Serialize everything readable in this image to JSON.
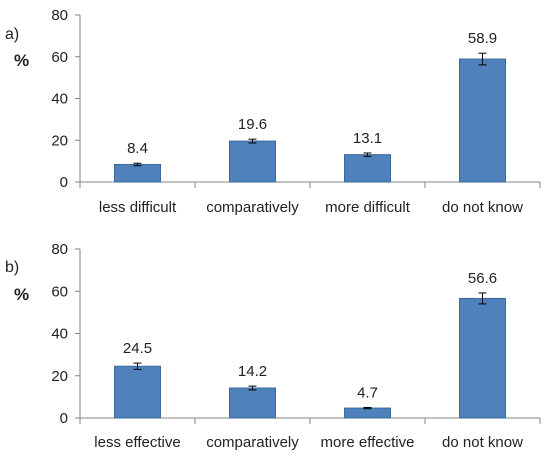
{
  "colors": {
    "bar": "#4F81BD",
    "bar_edge": "#3A6A9E",
    "axis": "#868686",
    "error_bar": "#000000"
  },
  "chart_data": [
    {
      "type": "bar",
      "panel_label": "a)",
      "ylabel": "%",
      "ylim": [
        0,
        80
      ],
      "yticks": [
        0,
        20,
        40,
        60,
        80
      ],
      "categories": [
        "less difficult",
        "comparatively",
        "more difficult",
        "do not know"
      ],
      "values": [
        8.4,
        19.6,
        13.1,
        58.9
      ],
      "data_labels": [
        "8.4",
        "19.6",
        "13.1",
        "58.9"
      ],
      "error": [
        0.6,
        0.9,
        0.8,
        2.8
      ],
      "grid": false
    },
    {
      "type": "bar",
      "panel_label": "b)",
      "ylabel": "%",
      "ylim": [
        0,
        80
      ],
      "yticks": [
        0,
        20,
        40,
        60,
        80
      ],
      "categories": [
        "less effective",
        "comparatively",
        "more effective",
        "do not know"
      ],
      "values": [
        24.5,
        14.2,
        4.7,
        56.6
      ],
      "data_labels": [
        "24.5",
        "14.2",
        "4.7",
        "56.6"
      ],
      "error": [
        1.5,
        0.9,
        0.3,
        2.6
      ],
      "grid": false
    }
  ]
}
